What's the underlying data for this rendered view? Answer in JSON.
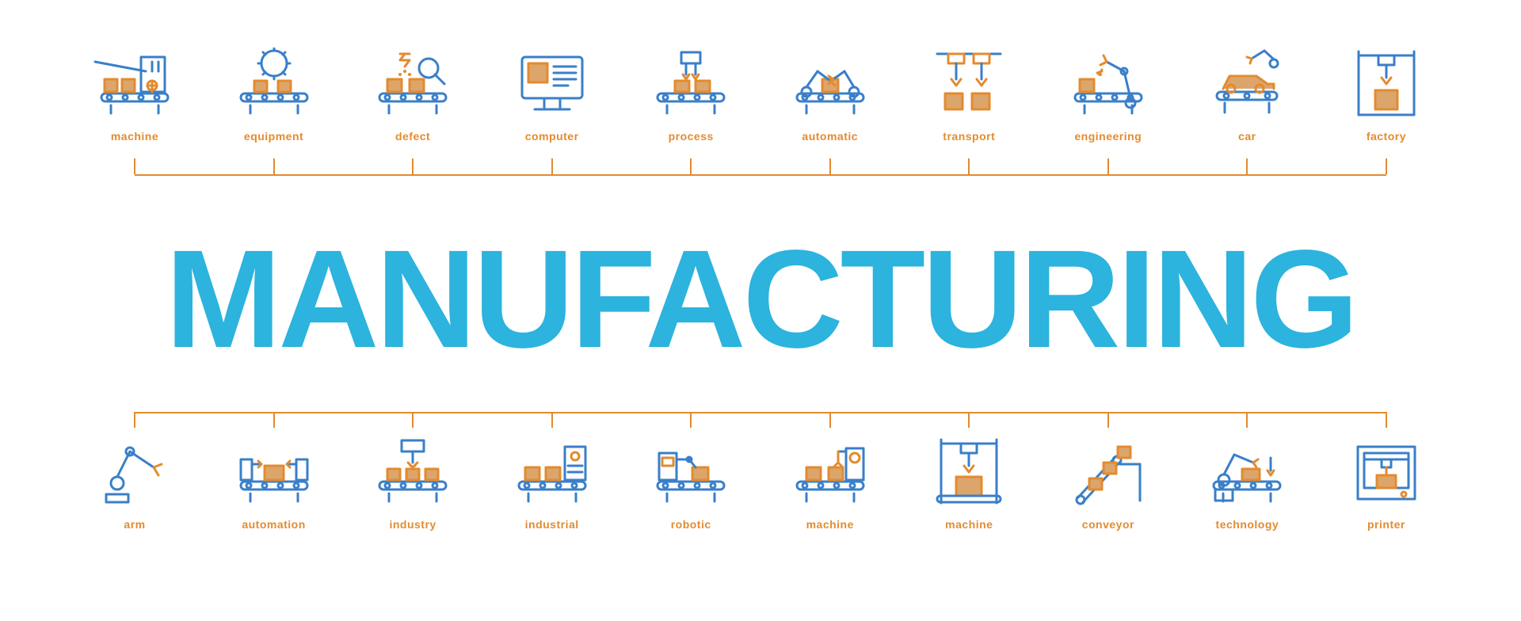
{
  "title": "MANUFACTURING",
  "colors": {
    "title": "#2cb3de",
    "label": "#e38b2f",
    "connector": "#e38b2f",
    "icon_blue": "#3a7fc9",
    "icon_orange": "#e38b2f",
    "icon_fill": "#dca56b",
    "background": "#ffffff"
  },
  "label_fontsize": 14,
  "title_fontsize": 176,
  "top_row": [
    {
      "name": "machine",
      "label": "machine"
    },
    {
      "name": "equipment",
      "label": "equipment"
    },
    {
      "name": "defect",
      "label": "defect"
    },
    {
      "name": "computer",
      "label": "computer"
    },
    {
      "name": "process",
      "label": "process"
    },
    {
      "name": "automatic",
      "label": "automatic"
    },
    {
      "name": "transport",
      "label": "transport"
    },
    {
      "name": "engineering",
      "label": "engineering"
    },
    {
      "name": "car",
      "label": "car"
    },
    {
      "name": "factory",
      "label": "factory"
    }
  ],
  "bottom_row": [
    {
      "name": "arm",
      "label": "arm"
    },
    {
      "name": "automation",
      "label": "automation"
    },
    {
      "name": "industry",
      "label": "industry"
    },
    {
      "name": "industrial",
      "label": "industrial"
    },
    {
      "name": "robotic",
      "label": "robotic"
    },
    {
      "name": "machine2",
      "label": "machine"
    },
    {
      "name": "machine3",
      "label": "machine"
    },
    {
      "name": "conveyor",
      "label": "conveyor"
    },
    {
      "name": "technology",
      "label": "technology"
    },
    {
      "name": "printer",
      "label": "printer"
    }
  ]
}
